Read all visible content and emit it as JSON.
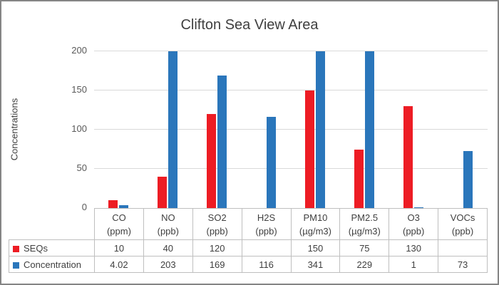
{
  "chart_data": {
    "type": "bar",
    "title": "Clifton Sea View Area",
    "ylabel": "Concentrations",
    "xlabel": "",
    "ylim": [
      0,
      200
    ],
    "yticks": [
      0,
      50,
      100,
      150,
      200
    ],
    "grid": true,
    "legend_position": "table-left",
    "bars_clipped_at_ymax": true,
    "categories": [
      {
        "name": "CO",
        "unit": "(ppm)"
      },
      {
        "name": "NO",
        "unit": "(ppb)"
      },
      {
        "name": "SO2",
        "unit": "(ppb)"
      },
      {
        "name": "H2S",
        "unit": "(ppb)"
      },
      {
        "name": "PM10",
        "unit": "(µg/m3)"
      },
      {
        "name": "PM2.5",
        "unit": "(µg/m3)"
      },
      {
        "name": "O3",
        "unit": "(ppb)"
      },
      {
        "name": "VOCs",
        "unit": "(ppb)"
      }
    ],
    "series": [
      {
        "name": "SEQs",
        "color": "#ed1c24",
        "values": [
          10,
          40,
          120,
          null,
          150,
          75,
          130,
          null
        ]
      },
      {
        "name": "Concentration",
        "color": "#2a76bb",
        "values": [
          4.02,
          203,
          169,
          116,
          341,
          229,
          1,
          73
        ]
      }
    ]
  }
}
